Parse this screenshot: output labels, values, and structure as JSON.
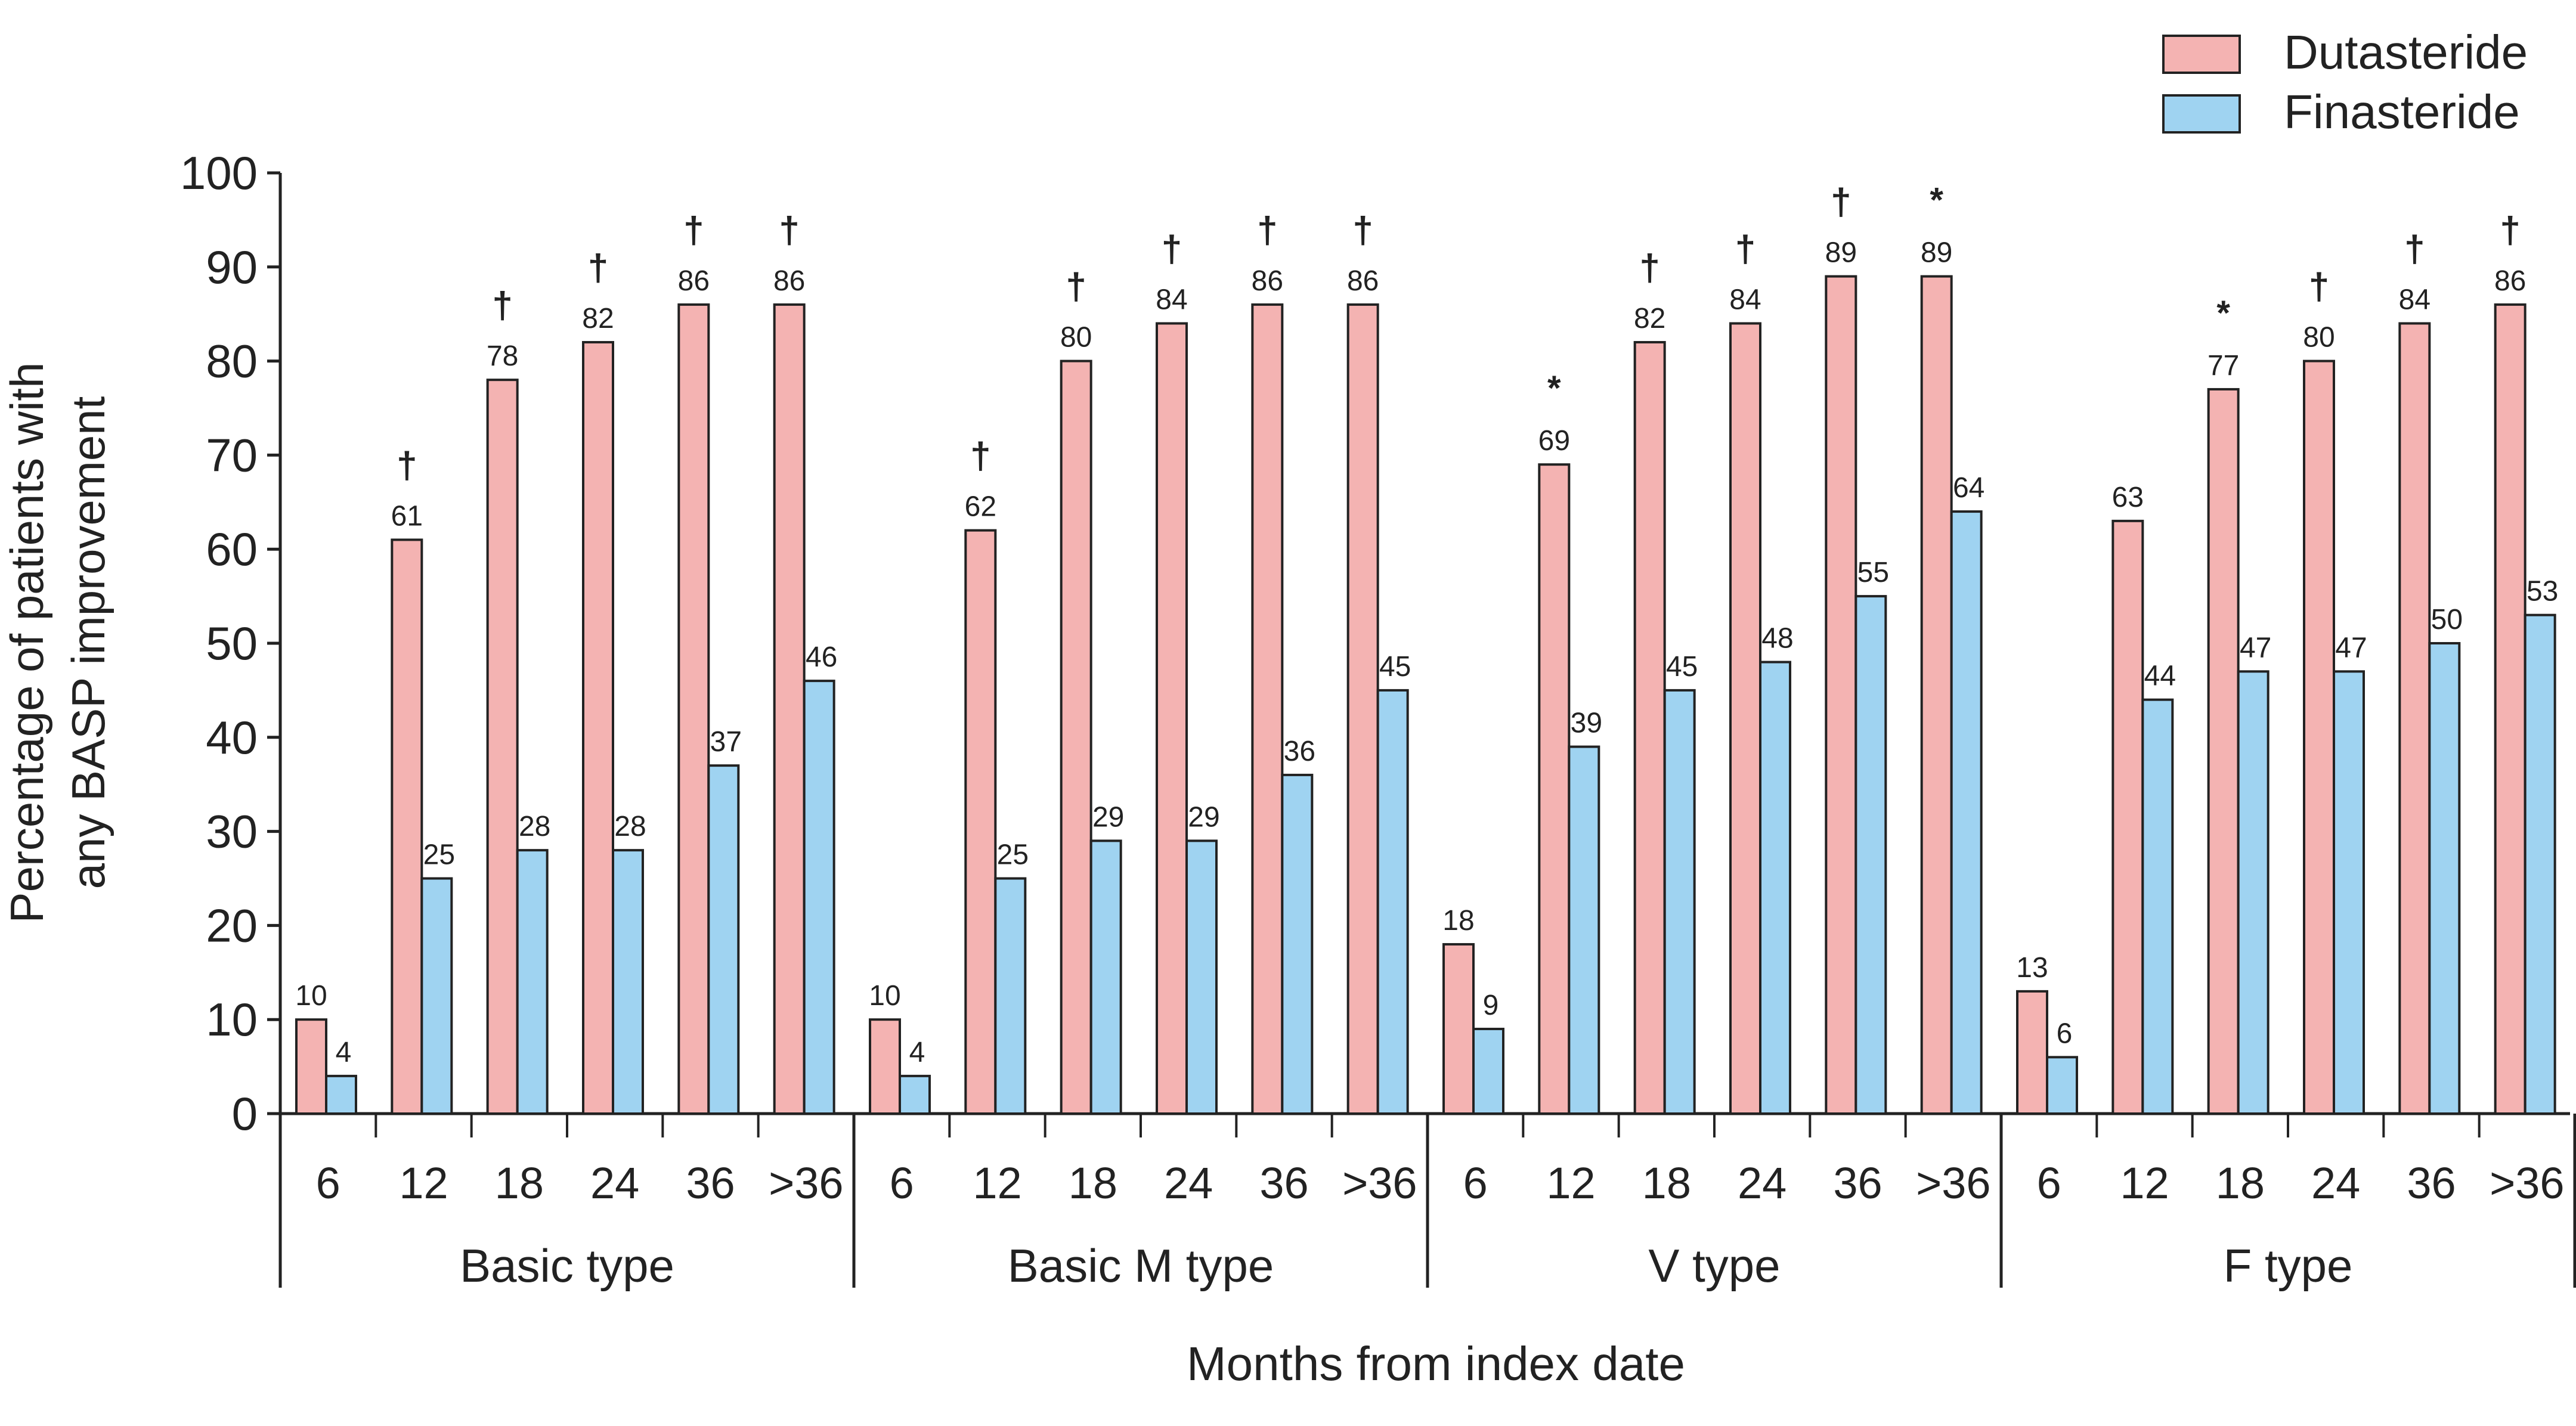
{
  "chart_data": {
    "type": "bar",
    "xlabel": "Months from index date",
    "ylabel": [
      "Percentage of patients with",
      "any BASP improvement"
    ],
    "ylim": [
      0,
      100
    ],
    "yticks": [
      0,
      10,
      20,
      30,
      40,
      50,
      60,
      70,
      80,
      90,
      100
    ],
    "legend": {
      "position": "top-right",
      "entries": [
        {
          "label": "Dutasteride",
          "color": "#f4b3b2"
        },
        {
          "label": "Finasteride",
          "color": "#9fd3f1"
        }
      ]
    },
    "groups": [
      {
        "name": "Basic type",
        "categories": [
          "6",
          "12",
          "18",
          "24",
          "36",
          ">36"
        ],
        "dutasteride": [
          10,
          61,
          78,
          82,
          86,
          86
        ],
        "finasteride": [
          4,
          25,
          28,
          28,
          37,
          46
        ],
        "markers": [
          "",
          "†",
          "†",
          "†",
          "†",
          "†"
        ]
      },
      {
        "name": "Basic M type",
        "categories": [
          "6",
          "12",
          "18",
          "24",
          "36",
          ">36"
        ],
        "dutasteride": [
          10,
          62,
          80,
          84,
          86,
          86
        ],
        "finasteride": [
          4,
          25,
          29,
          29,
          36,
          45
        ],
        "markers": [
          "",
          "†",
          "†",
          "†",
          "†",
          "†"
        ]
      },
      {
        "name": "V type",
        "categories": [
          "6",
          "12",
          "18",
          "24",
          "36",
          ">36"
        ],
        "dutasteride": [
          18,
          69,
          82,
          84,
          89,
          89
        ],
        "finasteride": [
          9,
          39,
          45,
          48,
          55,
          64
        ],
        "markers": [
          "",
          "*",
          "†",
          "†",
          "†",
          "*"
        ]
      },
      {
        "name": "F type",
        "categories": [
          "6",
          "12",
          "18",
          "24",
          "36",
          ">36"
        ],
        "dutasteride": [
          13,
          63,
          77,
          80,
          84,
          86
        ],
        "finasteride": [
          6,
          44,
          47,
          47,
          50,
          53
        ],
        "markers": [
          "",
          "",
          "*",
          "†",
          "†",
          "†"
        ]
      }
    ]
  }
}
